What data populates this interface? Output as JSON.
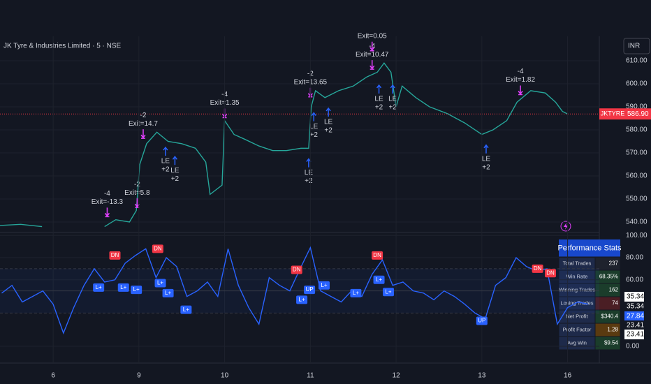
{
  "header": {
    "title": "JK Tyre & Industries Limited · 5 · NSE",
    "currency": "INR"
  },
  "chart_data": [
    {
      "type": "line",
      "color": "#26a69a",
      "xlim": [
        -0.62,
        6.37
      ],
      "ylim": [
        535.45,
        620.6
      ],
      "yticks": [
        {
          "value": 540,
          "label": "540.00"
        },
        {
          "value": 550,
          "label": "550.00"
        },
        {
          "value": 560,
          "label": "560.00"
        },
        {
          "value": 570,
          "label": "570.00"
        },
        {
          "value": 580,
          "label": "580.00"
        },
        {
          "value": 590,
          "label": "590.00"
        },
        {
          "value": 600,
          "label": "600.00"
        },
        {
          "value": 610,
          "label": "610.00"
        }
      ],
      "x": [
        -0.62,
        -0.38,
        -0.13,
        0.2,
        0.6,
        0.73,
        0.89,
        0.97,
        1.01,
        1.09,
        1.21,
        1.34,
        1.5,
        1.66,
        1.78,
        1.83,
        1.97,
        2.0,
        2.11,
        2.23,
        2.4,
        2.56,
        2.72,
        2.89,
        2.98,
        3.01,
        3.06,
        3.17,
        3.33,
        3.5,
        3.66,
        3.78,
        3.86,
        3.94,
        4.0,
        4.07,
        4.23,
        4.39,
        4.6,
        4.8,
        5.0,
        5.13,
        5.29,
        5.41,
        5.57,
        5.74,
        5.86,
        5.94,
        6.0
      ],
      "values": [
        538.5,
        539,
        538,
        null,
        538,
        541,
        540,
        545,
        565,
        574,
        579,
        575,
        574,
        572,
        566,
        552,
        556,
        584,
        578,
        576,
        573,
        571,
        571,
        572,
        572,
        590,
        597,
        594,
        597,
        599,
        603,
        605,
        609,
        605,
        590,
        599,
        594,
        590,
        587,
        583,
        578,
        580,
        584,
        592,
        597,
        596,
        592,
        588,
        586.9
      ],
      "last_price": {
        "value": 586.9,
        "label": "586.90"
      },
      "symbol": "JKTYRE",
      "exits": [
        {
          "label": "-4",
          "exit": "Exit=-13.3",
          "x": 0.63,
          "price": 542
        },
        {
          "label": "-2",
          "exit": "Exit=5.8",
          "x": 0.98,
          "price": 546
        },
        {
          "label": "-2",
          "exit": "Exit=14.7",
          "x": 1.05,
          "price": 576
        },
        {
          "label": "-4",
          "exit": "Exit=1.35",
          "x": 2.0,
          "price": 585
        },
        {
          "label": "-2",
          "exit": "Exit=13.65",
          "x": 3.0,
          "price": 594
        },
        {
          "label": "-4",
          "exit": "Exit=10.47",
          "x": 3.72,
          "price": 606
        },
        {
          "exit": "Exit=0.05",
          "x": 3.72,
          "price": 614
        },
        {
          "label": "-4",
          "exit": "Exit=1.82",
          "x": 5.45,
          "price": 595
        }
      ],
      "entries": [
        {
          "label": "LE",
          "qty": "+2",
          "x": 1.31,
          "price": 573
        },
        {
          "label": "LE",
          "qty": "+2",
          "x": 1.42,
          "price": 569
        },
        {
          "label": "LE",
          "qty": "+2",
          "x": 2.98,
          "price": 568
        },
        {
          "label": "LE",
          "qty": "+2",
          "x": 3.04,
          "price": 588
        },
        {
          "label": "LE",
          "qty": "+2",
          "x": 3.21,
          "price": 590
        },
        {
          "label": "LE",
          "qty": "+2",
          "x": 3.8,
          "price": 600
        },
        {
          "label": "LE",
          "qty": "+2",
          "x": 3.96,
          "price": 600
        },
        {
          "label": "LE",
          "qty": "+2",
          "x": 5.05,
          "price": 574
        }
      ]
    },
    {
      "type": "line",
      "color": "#2962ff",
      "xlim": [
        -0.62,
        6.37
      ],
      "ylim": [
        -15.1,
        102.7
      ],
      "yticks": [
        {
          "value": 0,
          "label": "0.00"
        },
        {
          "value": 60,
          "label": "60.00"
        },
        {
          "value": 80,
          "label": "80.00"
        },
        {
          "value": 100,
          "label": "100.00"
        }
      ],
      "xticks": [
        {
          "value": 0,
          "label": "6"
        },
        {
          "value": 1,
          "label": "9"
        },
        {
          "value": 2,
          "label": "10"
        },
        {
          "value": 3,
          "label": "11"
        },
        {
          "value": 4,
          "label": "12"
        },
        {
          "value": 5,
          "label": "13"
        },
        {
          "value": 6,
          "label": "16"
        }
      ],
      "levels": [
        70,
        50,
        30
      ],
      "x": [
        -0.6,
        -0.48,
        -0.36,
        -0.24,
        -0.12,
        0,
        0.12,
        0.24,
        0.36,
        0.48,
        0.6,
        0.72,
        0.84,
        0.96,
        1.08,
        1.2,
        1.32,
        1.44,
        1.56,
        1.68,
        1.8,
        1.92,
        2.04,
        2.16,
        2.28,
        2.4,
        2.52,
        2.64,
        2.76,
        2.88,
        3.0,
        3.12,
        3.24,
        3.36,
        3.48,
        3.6,
        3.72,
        3.84,
        3.96,
        4.08,
        4.2,
        4.32,
        4.44,
        4.56,
        4.68,
        4.8,
        4.92,
        5.04,
        5.16,
        5.28,
        5.4,
        5.52,
        5.64,
        5.76,
        5.88,
        6.0,
        6.12,
        6.24
      ],
      "values": [
        48,
        55,
        40,
        45,
        50,
        38,
        12,
        35,
        55,
        70,
        58,
        60,
        75,
        82,
        88,
        62,
        80,
        72,
        45,
        50,
        58,
        45,
        88,
        55,
        35,
        20,
        62,
        55,
        50,
        70,
        89,
        50,
        45,
        40,
        50,
        45,
        65,
        78,
        55,
        58,
        50,
        48,
        42,
        50,
        45,
        38,
        30,
        25,
        55,
        62,
        80,
        72,
        68,
        70,
        20,
        35,
        40,
        38
      ],
      "tags": [
        {
          "text": "DN",
          "x": 0.72,
          "y": 82
        },
        {
          "text": "DN",
          "x": 1.22,
          "y": 88
        },
        {
          "text": "L+",
          "x": 0.53,
          "y": 53
        },
        {
          "text": "L+",
          "x": 0.82,
          "y": 53
        },
        {
          "text": "L+",
          "x": 0.97,
          "y": 51
        },
        {
          "text": "L+",
          "x": 1.25,
          "y": 57
        },
        {
          "text": "L+",
          "x": 1.34,
          "y": 48
        },
        {
          "text": "L+",
          "x": 1.55,
          "y": 33
        },
        {
          "text": "DN",
          "x": 2.84,
          "y": 69
        },
        {
          "text": "UP",
          "x": 2.99,
          "y": 51
        },
        {
          "text": "L+",
          "x": 2.9,
          "y": 42
        },
        {
          "text": "L+",
          "x": 3.16,
          "y": 55
        },
        {
          "text": "L+",
          "x": 3.53,
          "y": 48
        },
        {
          "text": "DN",
          "x": 3.78,
          "y": 82
        },
        {
          "text": "L+",
          "x": 3.8,
          "y": 60
        },
        {
          "text": "L+",
          "x": 3.91,
          "y": 49
        },
        {
          "text": "UP",
          "x": 5.0,
          "y": 23
        },
        {
          "text": "DN",
          "x": 5.65,
          "y": 70
        },
        {
          "text": "DN",
          "x": 5.8,
          "y": 66
        }
      ],
      "markers": [
        35.34,
        35.34,
        27.84,
        23.41,
        23.41
      ]
    }
  ],
  "stats": {
    "title": "Performance Stats",
    "rows": [
      [
        "Total Trades",
        "237"
      ],
      [
        "Win Rate",
        "68.35%"
      ],
      [
        "Winning Trades",
        "162"
      ],
      [
        "Losing Trades",
        "74"
      ],
      [
        "Net Profit",
        "$340.4"
      ],
      [
        "Profit Factor",
        "1.28"
      ],
      [
        "Avg Win",
        "$9.54"
      ]
    ]
  }
}
